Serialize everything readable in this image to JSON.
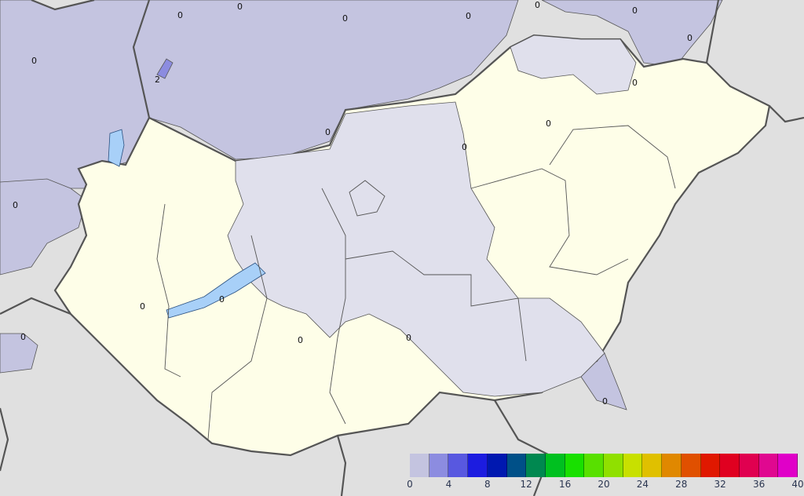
{
  "map": {
    "background_color": "#e0e0e0",
    "region_colors": {
      "below_threshold_inside": "#fefee8",
      "zero_inside": "#e0e0ec",
      "range_0_2": "#c4c4e0",
      "range_2_4": "#8c8ce0",
      "lake": "#a8d0f8",
      "border": "#555555"
    },
    "contour_labels": [
      "0",
      "0",
      "0",
      "0",
      "0",
      "0",
      "0",
      "0",
      "2",
      "0",
      "0",
      "0",
      "0",
      "0",
      "0",
      "0",
      "0",
      "0",
      "0",
      "0"
    ]
  },
  "colorbar": {
    "min": 0,
    "max": 40,
    "step": 2,
    "colors": [
      "#c4c4e0",
      "#8c8ce0",
      "#5858e0",
      "#1c1ce0",
      "#0018b0",
      "#005088",
      "#008850",
      "#00c020",
      "#18e000",
      "#58e000",
      "#90e000",
      "#c8e000",
      "#e0c000",
      "#e08800",
      "#e05000",
      "#e01800",
      "#e00020",
      "#e00050",
      "#e00890",
      "#e000c8"
    ],
    "tick_labels": [
      "0",
      "4",
      "8",
      "12",
      "16",
      "20",
      "24",
      "28",
      "32",
      "36",
      "40"
    ]
  }
}
